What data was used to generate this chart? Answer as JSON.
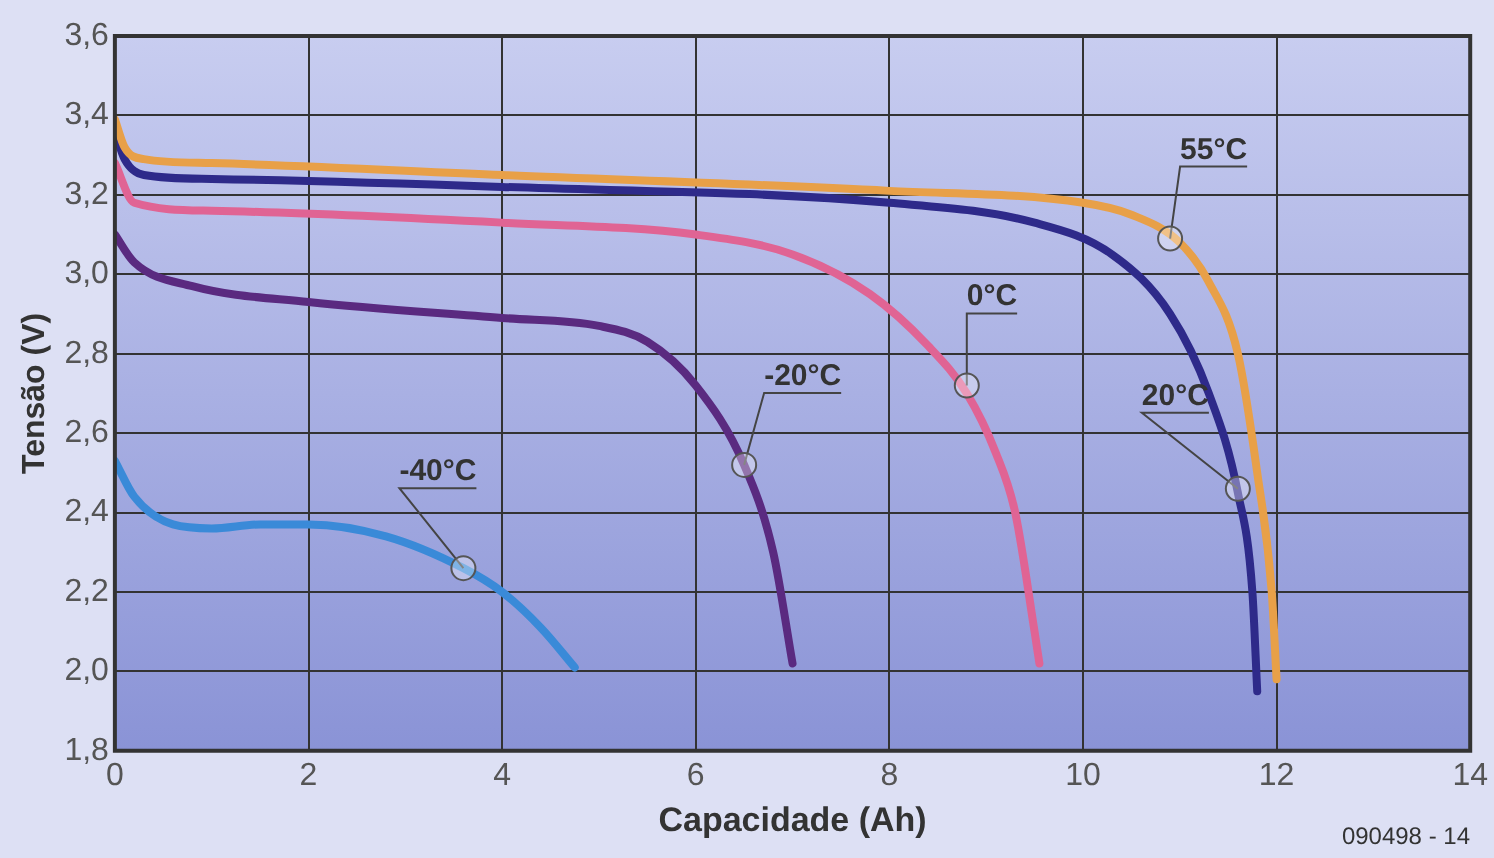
{
  "chart_data": {
    "type": "line",
    "xlabel": "Capacidade (Ah)",
    "ylabel": "Tensão (V)",
    "xlim": [
      0,
      14
    ],
    "xticks": [
      0,
      2,
      4,
      6,
      8,
      10,
      12,
      14
    ],
    "ylim": [
      1.8,
      3.6
    ],
    "yticks": [
      {
        "value": 1.8,
        "label": "1,8"
      },
      {
        "value": 2.0,
        "label": "2,0"
      },
      {
        "value": 2.2,
        "label": "2,2"
      },
      {
        "value": 2.4,
        "label": "2,4"
      },
      {
        "value": 2.6,
        "label": "2,6"
      },
      {
        "value": 2.8,
        "label": "2,8"
      },
      {
        "value": 3.0,
        "label": "3,0"
      },
      {
        "value": 3.2,
        "label": "3,2"
      },
      {
        "value": 3.4,
        "label": "3,4"
      },
      {
        "value": 3.6,
        "label": "3,6"
      }
    ],
    "grid": true,
    "legend": false,
    "marker": "none",
    "line_style": "solid",
    "series": [
      {
        "color": "#e8a048",
        "x": [
          0,
          0.1,
          0.3,
          1,
          4,
          8,
          10,
          10.5,
          11,
          11.3,
          11.6,
          11.8,
          11.95,
          12
        ],
        "values": [
          3.39,
          3.32,
          3.29,
          3.28,
          3.25,
          3.21,
          3.18,
          3.15,
          3.08,
          2.98,
          2.8,
          2.5,
          2.2,
          1.98
        ]
      },
      {
        "color": "#2e2a8a",
        "x": [
          0,
          0.1,
          0.3,
          1,
          4,
          8,
          9.5,
          10.3,
          10.9,
          11.3,
          11.6,
          11.75,
          11.8
        ],
        "values": [
          3.36,
          3.29,
          3.25,
          3.24,
          3.22,
          3.18,
          3.13,
          3.05,
          2.9,
          2.7,
          2.45,
          2.2,
          1.95
        ]
      },
      {
        "color": "#e06494",
        "x": [
          0,
          0.2,
          1,
          4,
          6,
          7,
          7.8,
          8.4,
          8.8,
          9.1,
          9.3,
          9.5,
          9.55
        ],
        "values": [
          3.28,
          3.18,
          3.16,
          3.13,
          3.1,
          3.05,
          2.95,
          2.82,
          2.7,
          2.55,
          2.4,
          2.1,
          2.02
        ]
      },
      {
        "color": "#5a2a80",
        "x": [
          0,
          0.2,
          0.8,
          2,
          4,
          5,
          5.5,
          6,
          6.5,
          6.8,
          7
        ],
        "values": [
          3.1,
          3.03,
          2.97,
          2.93,
          2.89,
          2.87,
          2.83,
          2.72,
          2.52,
          2.3,
          2.02
        ]
      },
      {
        "color": "#3a8ad8",
        "x": [
          0,
          0.2,
          0.6,
          1,
          1.5,
          2,
          2.8,
          3.6,
          4,
          4.4,
          4.75
        ],
        "values": [
          2.53,
          2.44,
          2.37,
          2.36,
          2.37,
          2.37,
          2.34,
          2.26,
          2.2,
          2.11,
          2.01
        ]
      }
    ],
    "annotations": [
      {
        "text": "55°C",
        "x": 10.9,
        "y": 3.09
      },
      {
        "text": "20°C",
        "x": 11.6,
        "y": 2.46
      },
      {
        "text": "0°C",
        "x": 8.8,
        "y": 2.72
      },
      {
        "text": "-20°C",
        "x": 6.5,
        "y": 2.52
      },
      {
        "text": "-40°C",
        "x": 3.6,
        "y": 2.26
      },
      "090498 - 14"
    ]
  }
}
